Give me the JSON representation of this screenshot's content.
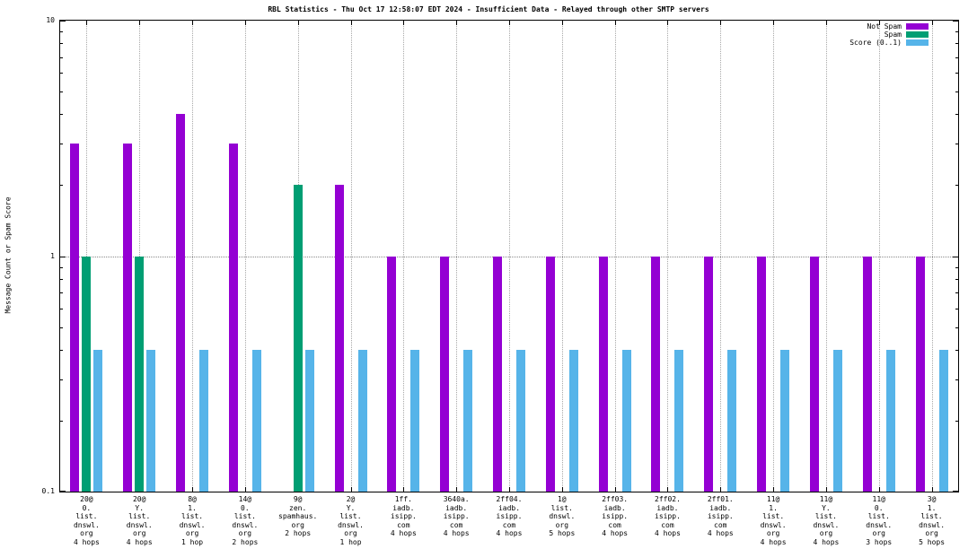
{
  "chart_data": {
    "type": "bar",
    "title": "RBL Statistics - Thu Oct 17 12:58:07 EDT 2024 - Insufficient Data - Relayed through other SMTP servers",
    "ylabel": "Message Count or Spam Score",
    "scale": "log",
    "ylim": [
      0.1,
      10
    ],
    "yticks": [
      0.1,
      1,
      10
    ],
    "minor_ticks": [
      0.2,
      0.3,
      0.4,
      0.5,
      0.6,
      0.7,
      0.8,
      0.9,
      2,
      3,
      4,
      5,
      6,
      7,
      8,
      9
    ],
    "grid": true,
    "legend_position": "top-right",
    "categories": [
      [
        "20@",
        "0.",
        "list.",
        "dnswl.",
        "org",
        "4 hops"
      ],
      [
        "20@",
        "Y.",
        "list.",
        "dnswl.",
        "org",
        "4 hops"
      ],
      [
        "8@",
        "1.",
        "list.",
        "dnswl.",
        "org",
        "1 hop"
      ],
      [
        "14@",
        "0.",
        "list.",
        "dnswl.",
        "org",
        "2 hops"
      ],
      [
        "9@",
        "zen.",
        "spamhaus.",
        "org",
        "2 hops"
      ],
      [
        "2@",
        "Y.",
        "list.",
        "dnswl.",
        "org",
        "1 hop"
      ],
      [
        "1ff.",
        "iadb.",
        "isipp.",
        "com",
        "4 hops"
      ],
      [
        "3640a.",
        "iadb.",
        "isipp.",
        "com",
        "4 hops"
      ],
      [
        "2ff04.",
        "iadb.",
        "isipp.",
        "com",
        "4 hops"
      ],
      [
        "1@",
        "list.",
        "dnswl.",
        "org",
        "5 hops"
      ],
      [
        "2ff03.",
        "iadb.",
        "isipp.",
        "com",
        "4 hops"
      ],
      [
        "2ff02.",
        "iadb.",
        "isipp.",
        "com",
        "4 hops"
      ],
      [
        "2ff01.",
        "iadb.",
        "isipp.",
        "com",
        "4 hops"
      ],
      [
        "11@",
        "1.",
        "list.",
        "dnswl.",
        "org",
        "4 hops"
      ],
      [
        "11@",
        "Y.",
        "list.",
        "dnswl.",
        "org",
        "4 hops"
      ],
      [
        "11@",
        "0.",
        "list.",
        "dnswl.",
        "org",
        "3 hops"
      ],
      [
        "3@",
        "1.",
        "list.",
        "dnswl.",
        "org",
        "5 hops"
      ]
    ],
    "series": [
      {
        "name": "Not Spam",
        "color": "#9400d3",
        "values": [
          3,
          3,
          4,
          3,
          null,
          2,
          1,
          1,
          1,
          1,
          1,
          1,
          1,
          1,
          1,
          1,
          1
        ]
      },
      {
        "name": "Spam",
        "color": "#009e73",
        "values": [
          1,
          1,
          null,
          null,
          2,
          null,
          null,
          null,
          null,
          null,
          null,
          null,
          null,
          null,
          null,
          null,
          null
        ]
      },
      {
        "name": "Score (0..1)",
        "color": "#56b4e9",
        "values": [
          0.4,
          0.4,
          0.4,
          0.4,
          0.4,
          0.4,
          0.4,
          0.4,
          0.4,
          0.4,
          0.4,
          0.4,
          0.4,
          0.4,
          0.4,
          0.4,
          0.4
        ]
      }
    ]
  }
}
